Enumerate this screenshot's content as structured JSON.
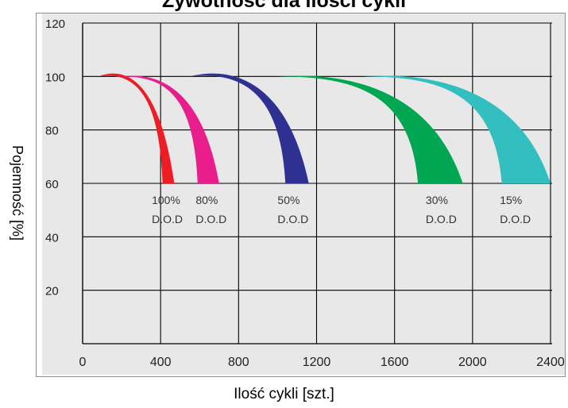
{
  "chart_data": {
    "type": "area",
    "title": "Żywotność dla ilości cykli",
    "xlabel": "Ilość cykli [szt.]",
    "ylabel": "Pojemność [%]",
    "xlim": [
      0,
      2400
    ],
    "ylim": [
      0,
      120
    ],
    "x_ticks": [
      "0",
      "400",
      "800",
      "1200",
      "1600",
      "2000",
      "2400"
    ],
    "y_ticks": [
      "20",
      "40",
      "60",
      "80",
      "100",
      "120"
    ],
    "grid": true,
    "plot_background": "#e8e8e8",
    "series": [
      {
        "label_line1": "100%",
        "label_line2": "D.O.D",
        "color": "#ee1c25",
        "start_x": 80,
        "peak_y": 102,
        "end_left": 410,
        "end_right": 470,
        "label_x": 355
      },
      {
        "label_line1": "80%",
        "label_line2": "D.O.D",
        "color": "#e91e8c",
        "start_x": 200,
        "peak_y": 100,
        "end_left": 590,
        "end_right": 700,
        "label_x": 580
      },
      {
        "label_line1": "50%",
        "label_line2": "D.O.D",
        "color": "#2e3192",
        "start_x": 550,
        "peak_y": 102,
        "end_left": 1040,
        "end_right": 1160,
        "label_x": 1000
      },
      {
        "label_line1": "30%",
        "label_line2": "D.O.D",
        "color": "#00a651",
        "start_x": 1000,
        "peak_y": 100,
        "end_left": 1720,
        "end_right": 1950,
        "label_x": 1760
      },
      {
        "label_line1": "15%",
        "label_line2": "D.O.D",
        "color": "#33bfbf",
        "start_x": 1440,
        "peak_y": 100,
        "end_left": 2150,
        "end_right": 2400,
        "label_x": 2140
      }
    ]
  }
}
